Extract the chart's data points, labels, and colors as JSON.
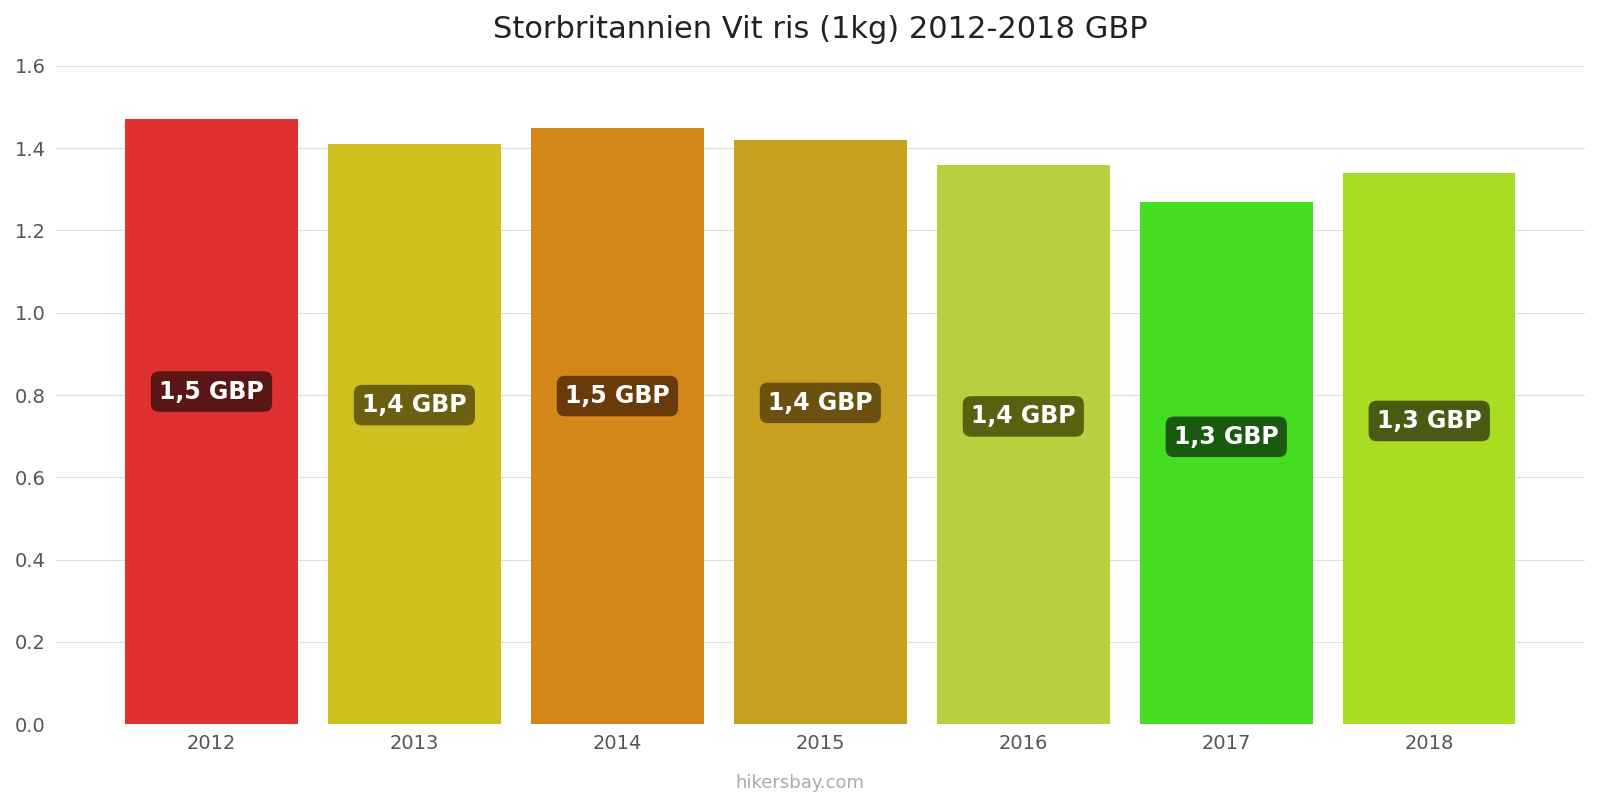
{
  "title": "Storbritannien Vit ris (1kg) 2012-2018 GBP",
  "years": [
    2012,
    2013,
    2014,
    2015,
    2016,
    2017,
    2018
  ],
  "values": [
    1.47,
    1.41,
    1.45,
    1.42,
    1.36,
    1.27,
    1.34
  ],
  "labels": [
    "1,5 GBP",
    "1,4 GBP",
    "1,5 GBP",
    "1,4 GBP",
    "1,4 GBP",
    "1,3 GBP",
    "1,3 GBP"
  ],
  "bar_colors": [
    "#e03030",
    "#cfc020",
    "#d4861a",
    "#c8a020",
    "#b8d040",
    "#44dd22",
    "#aadd22"
  ],
  "label_bg_colors": [
    "#5a1515",
    "#6b6010",
    "#6b3a0a",
    "#6b5010",
    "#5a6010",
    "#1a5a10",
    "#4a5a10"
  ],
  "ylim": [
    0,
    1.6
  ],
  "yticks": [
    0,
    0.2,
    0.4,
    0.6,
    0.8,
    1.0,
    1.2,
    1.4,
    1.6
  ],
  "background_color": "#ffffff",
  "watermark": "hikersbay.com",
  "title_fontsize": 22,
  "label_fontsize": 17,
  "bar_width": 0.85
}
